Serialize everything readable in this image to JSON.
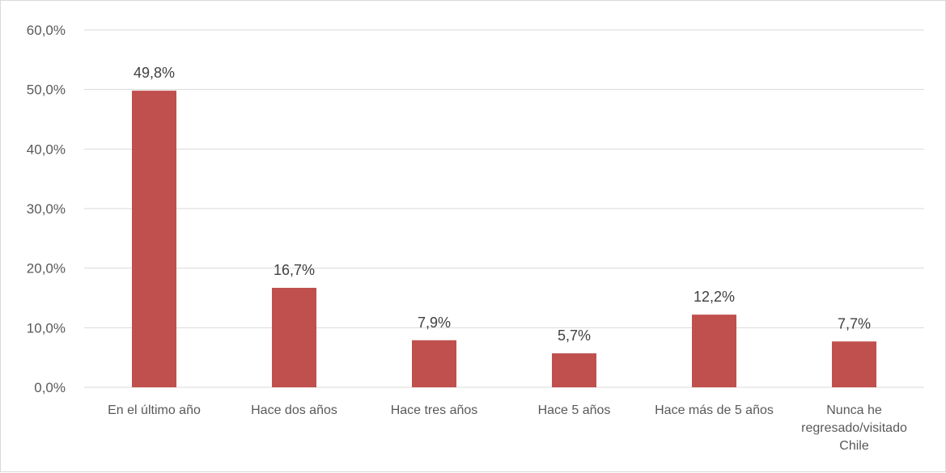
{
  "chart_data": {
    "type": "bar",
    "title": "",
    "xlabel": "",
    "ylabel": "",
    "categories": [
      "En el último año",
      "Hace dos años",
      "Hace tres años",
      "Hace 5 años",
      "Hace más de 5 años",
      "Nunca he regresado/visitado Chile"
    ],
    "category_lines": [
      [
        "En el último año"
      ],
      [
        "Hace dos años"
      ],
      [
        "Hace tres años"
      ],
      [
        "Hace 5 años"
      ],
      [
        "Hace más de 5 años"
      ],
      [
        "Nunca he",
        "regresado/visitado",
        "Chile"
      ]
    ],
    "values": [
      49.8,
      16.7,
      7.9,
      5.7,
      12.2,
      7.7
    ],
    "data_labels": [
      "49,8%",
      "16,7%",
      "7,9%",
      "5,7%",
      "12,2%",
      "7,7%"
    ],
    "ylim": [
      0,
      60
    ],
    "yticks": [
      0,
      10,
      20,
      30,
      40,
      50,
      60
    ],
    "ytick_labels": [
      "0,0%",
      "10,0%",
      "20,0%",
      "30,0%",
      "40,0%",
      "50,0%",
      "60,0%"
    ],
    "grid": true,
    "legend": "none",
    "bar_color": "#c0504d",
    "grid_color": "#d9d9d9"
  }
}
